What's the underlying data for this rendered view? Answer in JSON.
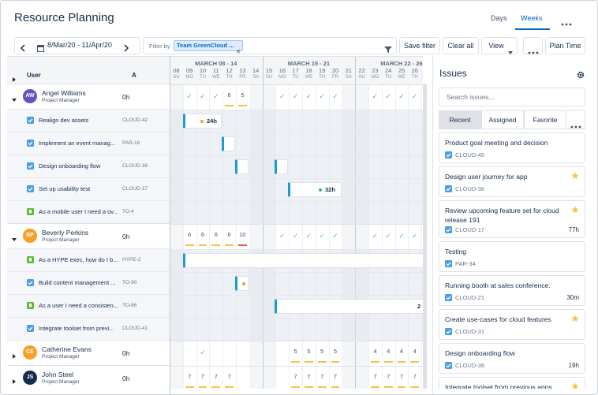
{
  "header": {
    "title": "Resource Planning",
    "tabs": [
      "Days",
      "Weeks"
    ]
  },
  "toolbar": {
    "date_range": "8/Mar/20 - 11/Apr/20",
    "filter_label": "Filter by",
    "filter_chip": "Team GreenCloud ...",
    "buttons": [
      "Save filter",
      "Clear all",
      "View",
      "Plan Time"
    ]
  },
  "grid": {
    "columns": [
      "User",
      "A"
    ],
    "weeks": [
      {
        "label": "MARCH 08 - 14"
      },
      {
        "label": "MARCH 15 - 21"
      },
      {
        "label": "MARCH 22 - 26"
      }
    ],
    "days": [
      {
        "d": "08",
        "w": "SU"
      },
      {
        "d": "09",
        "w": "MO"
      },
      {
        "d": "10",
        "w": "TU"
      },
      {
        "d": "11",
        "w": "WE"
      },
      {
        "d": "12",
        "w": "TH"
      },
      {
        "d": "13",
        "w": "FR"
      },
      {
        "d": "14",
        "w": "SA"
      },
      {
        "d": "15",
        "w": "SU"
      },
      {
        "d": "16",
        "w": "MO"
      },
      {
        "d": "17",
        "w": "TU"
      },
      {
        "d": "18",
        "w": "WE"
      },
      {
        "d": "19",
        "w": "TH"
      },
      {
        "d": "20",
        "w": "FR"
      },
      {
        "d": "21",
        "w": "SA"
      },
      {
        "d": "22",
        "w": "SU"
      },
      {
        "d": "23",
        "w": "MO"
      },
      {
        "d": "24",
        "w": "TU"
      },
      {
        "d": "25",
        "w": "WE"
      },
      {
        "d": "26",
        "w": "TH"
      }
    ],
    "users": [
      {
        "initials": "AW",
        "color": "#6554c0",
        "name": "Angel Williams",
        "role": "Project Manager",
        "hours": "0h",
        "cells": [
          null,
          "✓",
          "✓",
          "✓",
          "6",
          "5",
          null,
          null,
          "✓",
          "✓",
          "✓",
          "✓",
          "✓",
          null,
          null,
          "✓",
          "✓",
          "✓",
          "✓"
        ],
        "tasks": [
          {
            "title": "Realign dev assets",
            "key": "CLOUD-42",
            "icon": "task",
            "bar_label": "24h"
          },
          {
            "title": "Implement an event manag...",
            "key": "PAR-16",
            "icon": "task"
          },
          {
            "title": "Design onboarding flow",
            "key": "CLOUD-38",
            "icon": "task"
          },
          {
            "title": "Set up usability test",
            "key": "CLOUD-37",
            "icon": "task",
            "bar_label": "32h"
          },
          {
            "title": "As a mobile user I need a ov...",
            "key": "TO-4",
            "icon": "story"
          }
        ]
      },
      {
        "initials": "BP",
        "color": "#f6a028",
        "name": "Beverly Perkins",
        "role": "Project Manager",
        "hours": "0h",
        "cells": [
          null,
          "6",
          "6",
          "6",
          "6",
          "10",
          null,
          null,
          "✓",
          "✓",
          "✓",
          "✓",
          "✓",
          null,
          null,
          "✓",
          "✓",
          "✓",
          "✓"
        ],
        "tasks": [
          {
            "title": "As a HYPE exec, how do I b...",
            "key": "HYPE-2",
            "icon": "story"
          },
          {
            "title": "Build content management ...",
            "key": "TO-90",
            "icon": "task"
          },
          {
            "title": "As a user I need a consisten...",
            "key": "TO-86",
            "icon": "story",
            "bar_label": "2"
          },
          {
            "title": "Integrate toolset from previ...",
            "key": "CLOUD-41",
            "icon": "task"
          }
        ]
      },
      {
        "initials": "CE",
        "color": "#f6a028",
        "name": "Catherine Evans",
        "role": "Project Manager",
        "hours": "0h",
        "cells": [
          null,
          null,
          "✓",
          null,
          null,
          null,
          null,
          null,
          null,
          "5",
          "5",
          "5",
          "5",
          null,
          null,
          "4",
          "4",
          "4",
          "4"
        ],
        "tasks": []
      },
      {
        "initials": "JS",
        "color": "#172b4d",
        "name": "John Steel",
        "role": "Project Manager",
        "hours": "0h",
        "cells": [
          null,
          "7",
          "7",
          "7",
          "7",
          null,
          null,
          null,
          null,
          "7",
          "7",
          "7",
          "7",
          null,
          null,
          "7",
          "7",
          "7",
          "7"
        ],
        "tasks": []
      }
    ]
  },
  "issues": {
    "title": "Issues",
    "search_placeholder": "Search issues...",
    "tabs": [
      "Recent",
      "Assigned",
      "Favorite"
    ],
    "cards": [
      {
        "title": "Product goal meeting and decision",
        "key": "CLOUD-45",
        "starred": false
      },
      {
        "title": "Design user journey for app",
        "key": "CLOUD-36",
        "starred": true
      },
      {
        "title": "Review upcoming feature set for cloud release 191",
        "key": "CLOUD-17",
        "time": "77h",
        "starred": true
      },
      {
        "title": "Testing",
        "key": "PAR-34",
        "starred": false
      },
      {
        "title": "Running booth at sales conference.",
        "key": "CLOUD-21",
        "time": "30m",
        "starred": false
      },
      {
        "title": "Create use-cases for cloud features",
        "key": "CLOUD-31",
        "starred": true
      },
      {
        "title": "Design onboarding flow",
        "key": "CLOUD-38",
        "time": "19h",
        "starred": false
      },
      {
        "title": "Integrate toolset from previous apps",
        "starred": true
      }
    ]
  }
}
